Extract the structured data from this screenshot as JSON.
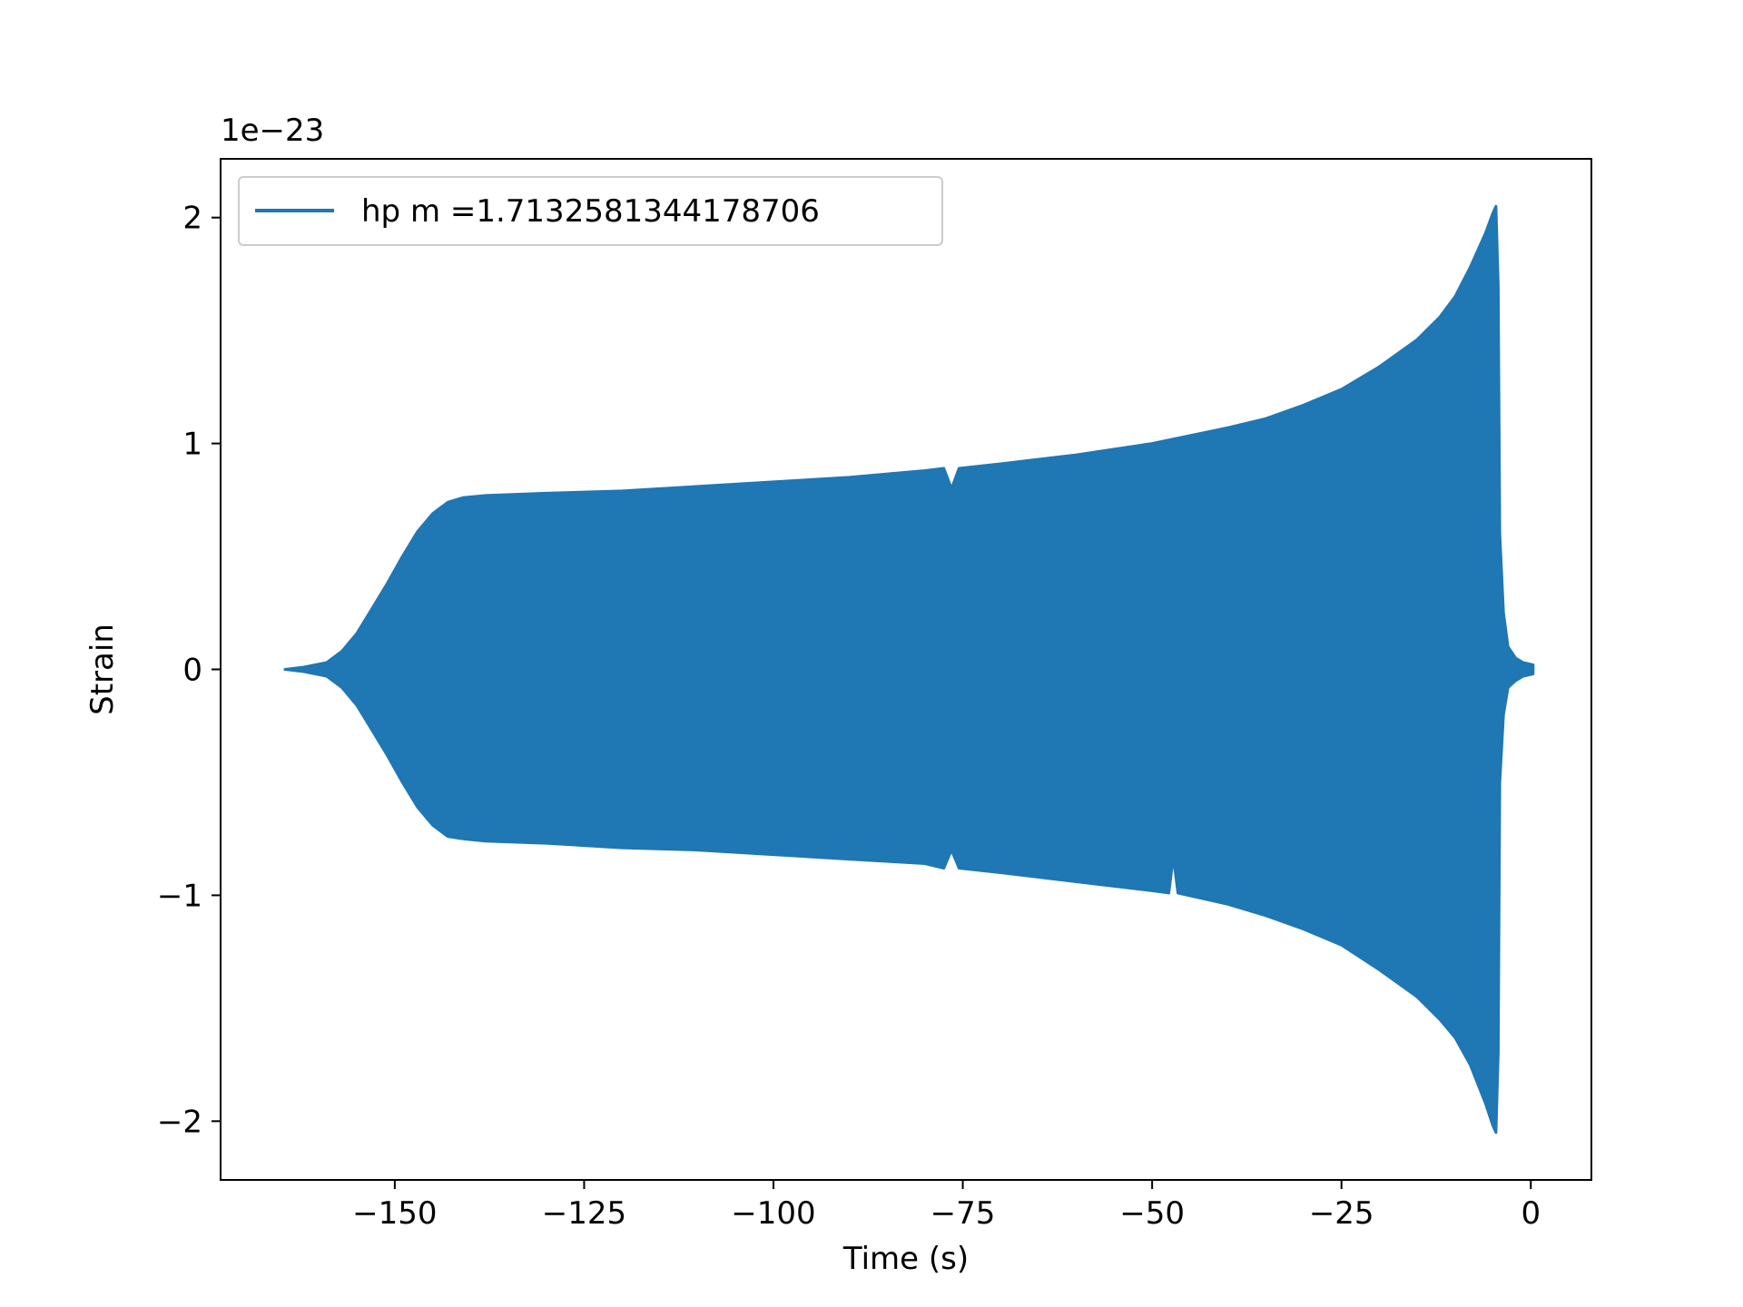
{
  "chart_data": {
    "type": "line",
    "title": "",
    "xlabel": "Time (s)",
    "ylabel": "Strain",
    "y_offset_label": "1e−23",
    "xlim": [
      -173,
      8
    ],
    "ylim": [
      -2.26,
      2.26
    ],
    "y_scale_factor": 1e-23,
    "x_ticks": [
      -150,
      -125,
      -100,
      -75,
      -50,
      -25,
      0
    ],
    "x_tick_labels": [
      "−150",
      "−125",
      "−100",
      "−75",
      "−50",
      "−25",
      "0"
    ],
    "y_ticks": [
      -2,
      -1,
      0,
      1,
      2
    ],
    "y_tick_labels": [
      "−2",
      "−1",
      "0",
      "1",
      "2"
    ],
    "grid": false,
    "legend_position": "upper-left",
    "series": [
      {
        "name": "hp m =1.7132581344178706",
        "color": "#1f77b4",
        "style": "dense-oscillation",
        "upper_envelope": [
          [
            -164.5,
            0.0
          ],
          [
            -162,
            0.01
          ],
          [
            -159,
            0.03
          ],
          [
            -157,
            0.08
          ],
          [
            -155,
            0.16
          ],
          [
            -153,
            0.27
          ],
          [
            -151,
            0.38
          ],
          [
            -149,
            0.5
          ],
          [
            -147,
            0.61
          ],
          [
            -145,
            0.69
          ],
          [
            -143,
            0.74
          ],
          [
            -141,
            0.76
          ],
          [
            -138,
            0.77
          ],
          [
            -130,
            0.78
          ],
          [
            -120,
            0.79
          ],
          [
            -110,
            0.81
          ],
          [
            -100,
            0.83
          ],
          [
            -90,
            0.85
          ],
          [
            -80,
            0.88
          ],
          [
            -77.5,
            0.89
          ],
          [
            -76.5,
            0.8
          ],
          [
            -75.5,
            0.89
          ],
          [
            -70,
            0.91
          ],
          [
            -60,
            0.95
          ],
          [
            -50,
            1.0
          ],
          [
            -40,
            1.07
          ],
          [
            -35,
            1.11
          ],
          [
            -30,
            1.17
          ],
          [
            -25,
            1.24
          ],
          [
            -20,
            1.34
          ],
          [
            -15,
            1.46
          ],
          [
            -12,
            1.56
          ],
          [
            -10,
            1.65
          ],
          [
            -8,
            1.78
          ],
          [
            -6,
            1.93
          ],
          [
            -5,
            2.02
          ],
          [
            -4.6,
            2.05
          ],
          [
            -4.3,
            1.7
          ],
          [
            -4.1,
            0.6
          ],
          [
            -3.6,
            0.25
          ],
          [
            -3.0,
            0.1
          ],
          [
            -2,
            0.05
          ],
          [
            -1,
            0.03
          ],
          [
            0.3,
            0.02
          ]
        ],
        "lower_envelope": [
          [
            -164.5,
            0.0
          ],
          [
            -162,
            -0.01
          ],
          [
            -159,
            -0.03
          ],
          [
            -157,
            -0.08
          ],
          [
            -155,
            -0.16
          ],
          [
            -153,
            -0.27
          ],
          [
            -151,
            -0.38
          ],
          [
            -149,
            -0.5
          ],
          [
            -147,
            -0.61
          ],
          [
            -145,
            -0.69
          ],
          [
            -143,
            -0.74
          ],
          [
            -141,
            -0.75
          ],
          [
            -138,
            -0.76
          ],
          [
            -130,
            -0.77
          ],
          [
            -120,
            -0.79
          ],
          [
            -110,
            -0.8
          ],
          [
            -100,
            -0.82
          ],
          [
            -90,
            -0.84
          ],
          [
            -80,
            -0.86
          ],
          [
            -77.5,
            -0.88
          ],
          [
            -76.5,
            -0.8
          ],
          [
            -75.5,
            -0.88
          ],
          [
            -70,
            -0.9
          ],
          [
            -60,
            -0.94
          ],
          [
            -50,
            -0.98
          ],
          [
            -47.8,
            -0.99
          ],
          [
            -47.2,
            -0.83
          ],
          [
            -46.6,
            -0.99
          ],
          [
            -40,
            -1.04
          ],
          [
            -35,
            -1.09
          ],
          [
            -30,
            -1.15
          ],
          [
            -25,
            -1.22
          ],
          [
            -20,
            -1.33
          ],
          [
            -15,
            -1.45
          ],
          [
            -12,
            -1.55
          ],
          [
            -10,
            -1.63
          ],
          [
            -8,
            -1.75
          ],
          [
            -6,
            -1.92
          ],
          [
            -5,
            -2.02
          ],
          [
            -4.6,
            -2.05
          ],
          [
            -4.3,
            -1.7
          ],
          [
            -4.1,
            -0.5
          ],
          [
            -3.6,
            -0.2
          ],
          [
            -3.0,
            -0.08
          ],
          [
            -2,
            -0.05
          ],
          [
            -1,
            -0.03
          ],
          [
            0.3,
            -0.02
          ]
        ]
      }
    ]
  }
}
